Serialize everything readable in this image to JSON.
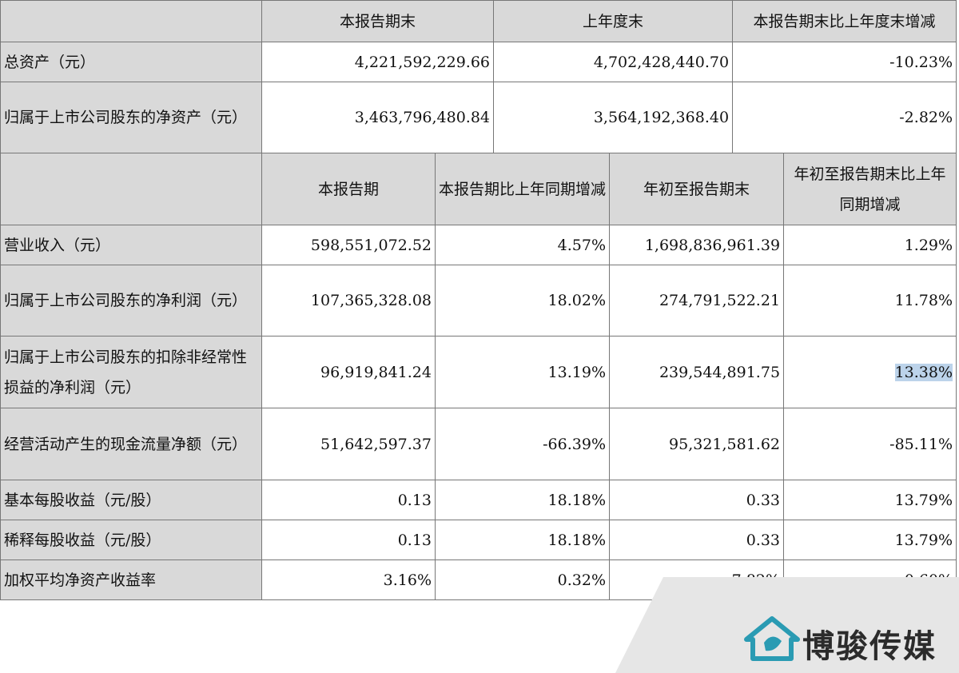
{
  "table1": {
    "headers": [
      "本报告期末",
      "上年度末",
      "本报告期末比上年度末增减"
    ],
    "rows": [
      {
        "label": "总资产（元）",
        "v": [
          "4,221,592,229.66",
          "4,702,428,440.70",
          "-10.23%"
        ]
      },
      {
        "label": "归属于上市公司股东的净资产（元）",
        "v": [
          "3,463,796,480.84",
          "3,564,192,368.40",
          "-2.82%"
        ]
      }
    ]
  },
  "table2": {
    "headers": [
      "本报告期",
      "本报告期比上年同期增减",
      "年初至报告期末",
      "年初至报告期末比上年同期增减"
    ],
    "rows": [
      {
        "label": "营业收入（元）",
        "v": [
          "598,551,072.52",
          "4.57%",
          "1,698,836,961.39",
          "1.29%"
        ]
      },
      {
        "label": "归属于上市公司股东的净利润（元）",
        "v": [
          "107,365,328.08",
          "18.02%",
          "274,791,522.21",
          "11.78%"
        ]
      },
      {
        "label": "归属于上市公司股东的扣除非经常性损益的净利润（元）",
        "v": [
          "96,919,841.24",
          "13.19%",
          "239,544,891.75",
          "13.38%"
        ]
      },
      {
        "label": "经营活动产生的现金流量净额（元）",
        "v": [
          "51,642,597.37",
          "-66.39%",
          "95,321,581.62",
          "-85.11%"
        ]
      },
      {
        "label": "基本每股收益（元/股）",
        "v": [
          "0.13",
          "18.18%",
          "0.33",
          "13.79%"
        ]
      },
      {
        "label": "稀释每股收益（元/股）",
        "v": [
          "0.13",
          "18.18%",
          "0.33",
          "13.79%"
        ]
      },
      {
        "label": "加权平均净资产收益率",
        "v": [
          "3.16%",
          "0.32%",
          "7.82%",
          "0.60%"
        ]
      }
    ]
  },
  "watermark": {
    "text": "博骏传媒"
  },
  "colors": {
    "header_bg": "#d9d9d9",
    "border": "#777777",
    "highlight": "#bcd3ea",
    "logo": "#2a9bb3"
  }
}
